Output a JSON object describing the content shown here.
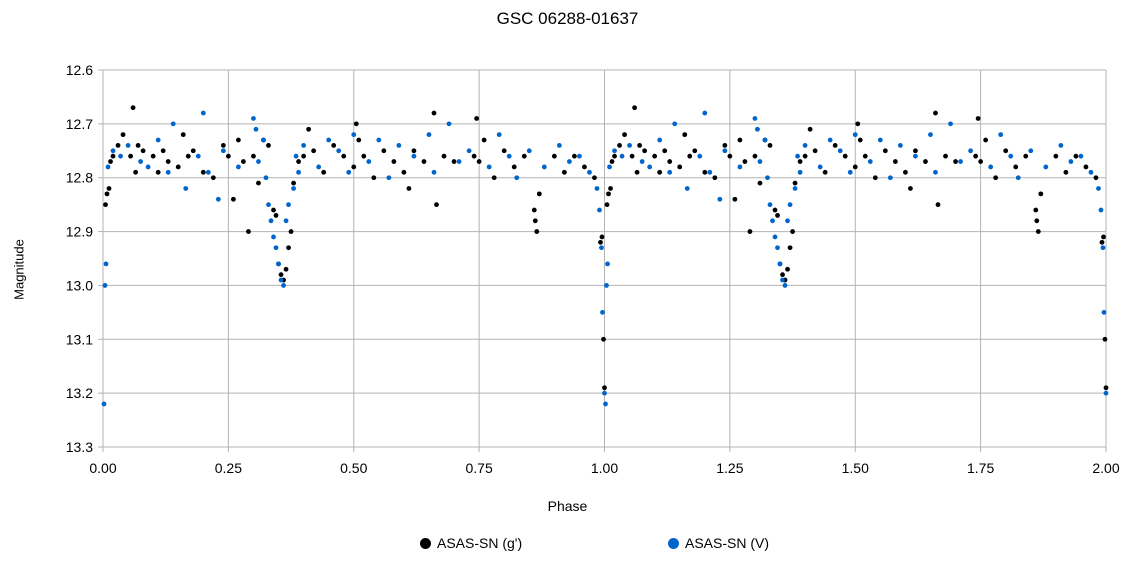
{
  "chart_data": {
    "type": "scatter",
    "title": "GSC 06288-01637",
    "xlabel": "Phase",
    "ylabel": "Magnitude",
    "xlim": [
      0,
      2
    ],
    "ylim": [
      12.6,
      13.3
    ],
    "y_inverted": true,
    "xticks": [
      "0.00",
      "0.25",
      "0.50",
      "0.75",
      "1.00",
      "1.25",
      "1.50",
      "1.75",
      "2.00"
    ],
    "yticks": [
      "12.6",
      "12.7",
      "12.8",
      "12.9",
      "13.0",
      "13.1",
      "13.2",
      "13.3"
    ],
    "grid": true,
    "legend_position": "bottom",
    "colors": {
      "g": "#000000",
      "V": "#0066cc"
    },
    "series": [
      {
        "name": "ASAS-SN (g')",
        "color": "#000000",
        "x": [
          0.005,
          0.008,
          0.012,
          0.015,
          0.02,
          0.03,
          0.04,
          0.055,
          0.06,
          0.065,
          0.07,
          0.08,
          0.1,
          0.11,
          0.12,
          0.13,
          0.15,
          0.16,
          0.17,
          0.18,
          0.2,
          0.22,
          0.24,
          0.25,
          0.26,
          0.27,
          0.28,
          0.29,
          0.3,
          0.31,
          0.32,
          0.33,
          0.34,
          0.345,
          0.35,
          0.355,
          0.36,
          0.365,
          0.37,
          0.375,
          0.38,
          0.39,
          0.4,
          0.41,
          0.42,
          0.44,
          0.46,
          0.48,
          0.5,
          0.505,
          0.51,
          0.52,
          0.54,
          0.56,
          0.58,
          0.6,
          0.61,
          0.62,
          0.64,
          0.66,
          0.665,
          0.68,
          0.7,
          0.74,
          0.745,
          0.75,
          0.76,
          0.78,
          0.8,
          0.82,
          0.84,
          0.86,
          0.862,
          0.865,
          0.87,
          0.9,
          0.92,
          0.94,
          0.96,
          0.98,
          0.992,
          0.995,
          0.998,
          1.0
        ],
        "y": [
          12.85,
          12.83,
          12.82,
          12.77,
          12.76,
          12.74,
          12.72,
          12.76,
          12.67,
          12.79,
          12.74,
          12.75,
          12.76,
          12.79,
          12.75,
          12.77,
          12.78,
          12.72,
          12.76,
          12.75,
          12.79,
          12.8,
          12.74,
          12.76,
          12.84,
          12.73,
          12.77,
          12.9,
          12.76,
          12.81,
          12.73,
          12.74,
          12.86,
          12.87,
          12.96,
          12.98,
          12.99,
          12.97,
          12.93,
          12.9,
          12.81,
          12.77,
          12.76,
          12.71,
          12.75,
          12.79,
          12.74,
          12.76,
          12.78,
          12.7,
          12.73,
          12.76,
          12.8,
          12.75,
          12.77,
          12.79,
          12.82,
          12.75,
          12.77,
          12.68,
          12.85,
          12.76,
          12.77,
          12.76,
          12.69,
          12.77,
          12.73,
          12.8,
          12.75,
          12.78,
          12.76,
          12.86,
          12.88,
          12.9,
          12.83,
          12.76,
          12.79,
          12.76,
          12.78,
          12.8,
          12.92,
          12.91,
          13.1,
          13.19
        ]
      },
      {
        "name": "ASAS-SN (V)",
        "color": "#0066cc",
        "x": [
          0.002,
          0.004,
          0.006,
          0.01,
          0.02,
          0.035,
          0.05,
          0.075,
          0.09,
          0.11,
          0.13,
          0.14,
          0.165,
          0.19,
          0.2,
          0.21,
          0.23,
          0.24,
          0.27,
          0.3,
          0.305,
          0.31,
          0.32,
          0.325,
          0.33,
          0.335,
          0.34,
          0.345,
          0.35,
          0.355,
          0.36,
          0.365,
          0.37,
          0.38,
          0.385,
          0.39,
          0.4,
          0.43,
          0.45,
          0.47,
          0.49,
          0.5,
          0.53,
          0.55,
          0.57,
          0.59,
          0.62,
          0.65,
          0.66,
          0.69,
          0.71,
          0.73,
          0.77,
          0.79,
          0.81,
          0.825,
          0.85,
          0.88,
          0.91,
          0.93,
          0.95,
          0.97,
          0.985,
          0.99,
          0.994,
          0.996,
          1.0
        ],
        "y": [
          13.22,
          13.0,
          12.96,
          12.78,
          12.75,
          12.76,
          12.74,
          12.77,
          12.78,
          12.73,
          12.79,
          12.7,
          12.82,
          12.76,
          12.68,
          12.79,
          12.84,
          12.75,
          12.78,
          12.69,
          12.71,
          12.77,
          12.73,
          12.8,
          12.85,
          12.88,
          12.91,
          12.93,
          12.96,
          12.99,
          13.0,
          12.88,
          12.85,
          12.82,
          12.76,
          12.79,
          12.74,
          12.78,
          12.73,
          12.75,
          12.79,
          12.72,
          12.77,
          12.73,
          12.8,
          12.74,
          12.76,
          12.72,
          12.79,
          12.7,
          12.77,
          12.75,
          12.78,
          12.72,
          12.76,
          12.8,
          12.75,
          12.78,
          12.74,
          12.77,
          12.76,
          12.79,
          12.82,
          12.86,
          12.93,
          13.05,
          13.2
        ]
      }
    ]
  }
}
